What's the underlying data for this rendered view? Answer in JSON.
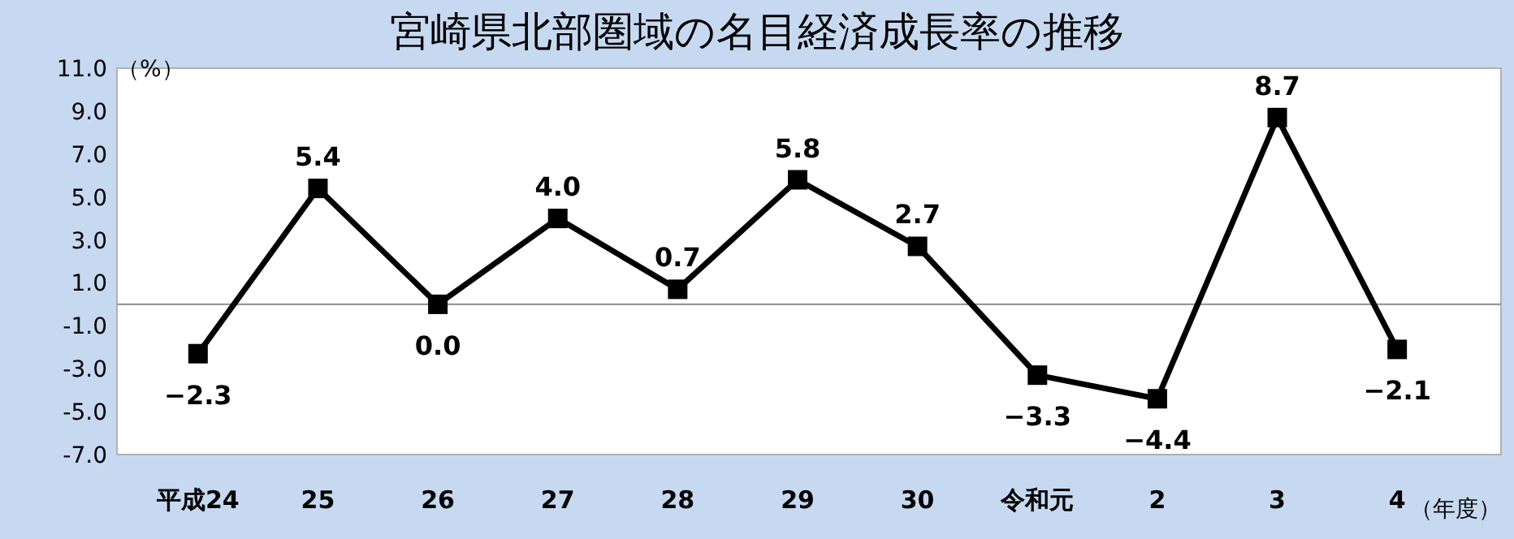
{
  "chart_data": {
    "type": "line",
    "title": "宮崎県北部圏域の名目経済成長率の推移",
    "ylabel": "（%）",
    "xlabel": "（年度）",
    "categories": [
      "平成24",
      "25",
      "26",
      "27",
      "28",
      "29",
      "30",
      "令和元",
      "2",
      "3",
      "4"
    ],
    "series": [
      {
        "color": "#000000",
        "values": [
          -2.3,
          5.4,
          0.0,
          4.0,
          0.7,
          5.8,
          2.7,
          -3.3,
          -4.4,
          8.7,
          -2.1
        ],
        "value_labels": [
          "−2.3",
          "5.4",
          "0.0",
          "4.0",
          "0.7",
          "5.8",
          "2.7",
          "−3.3",
          "−4.4",
          "8.7",
          "−2.1"
        ]
      }
    ],
    "ylim": [
      -7.0,
      11.0
    ],
    "yticks": [
      {
        "value": -7,
        "label": "-7.0"
      },
      {
        "value": -5,
        "label": "-5.0"
      },
      {
        "value": -3,
        "label": "-3.0"
      },
      {
        "value": -1,
        "label": "-1.0"
      },
      {
        "value": 1,
        "label": "1.0"
      },
      {
        "value": 3,
        "label": "3.0"
      },
      {
        "value": 5,
        "label": "5.0"
      },
      {
        "value": 7,
        "label": "7.0"
      },
      {
        "value": 9,
        "label": "9.0"
      },
      {
        "value": 11,
        "label": "11.0"
      }
    ],
    "ref_lines": [
      {
        "axis": "y",
        "value": 0,
        "color": "#999999"
      }
    ],
    "marker": "square",
    "line_style": "solid"
  }
}
